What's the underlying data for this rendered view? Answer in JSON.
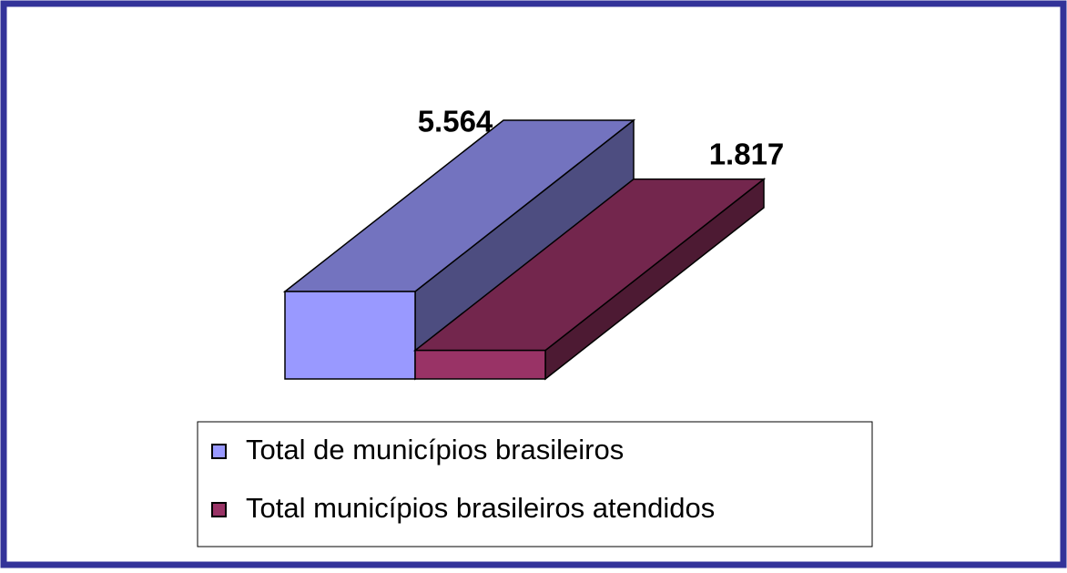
{
  "chart_data": {
    "type": "bar3d",
    "series": [
      {
        "name": "Total de municípios brasileiros",
        "color": "#9999ff",
        "values": [
          5564
        ],
        "value_labels": [
          "5.564"
        ]
      },
      {
        "name": "Total municípios brasileiros atendidos",
        "color": "#993366",
        "values": [
          1817
        ],
        "value_labels": [
          "1.817"
        ]
      }
    ],
    "legend": "bottom"
  }
}
